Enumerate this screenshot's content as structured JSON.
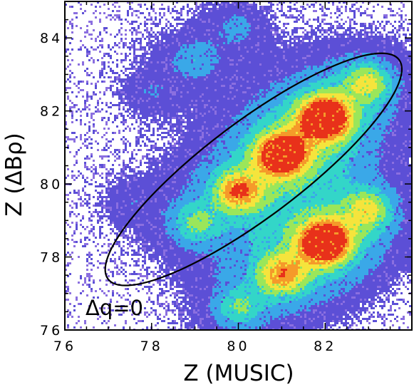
{
  "chart_data": {
    "type": "heatmap",
    "xlabel": "Z (MUSIC)",
    "ylabel": "Z (ΔBρ)",
    "xlim": [
      76,
      84
    ],
    "ylim": [
      76,
      85
    ],
    "x_ticks": [
      76,
      78,
      80,
      82
    ],
    "y_ticks": [
      76,
      78,
      80,
      82,
      84
    ],
    "x_tick_labels": [
      "76",
      "78",
      "80",
      "82"
    ],
    "y_tick_labels": [
      "76",
      "78",
      "80",
      "82",
      "84"
    ],
    "colormap": [
      "#ffffff",
      "#8b6fe0",
      "#5c4fd6",
      "#3aa8e8",
      "#33d6c8",
      "#9be65a",
      "#f5e43c",
      "#f59a2a",
      "#e8311a"
    ],
    "clusters": [
      {
        "x": 80,
        "y": 79.8,
        "intensity": 0.55
      },
      {
        "x": 81,
        "y": 80.8,
        "intensity": 0.85
      },
      {
        "x": 82,
        "y": 81.8,
        "intensity": 0.95
      },
      {
        "x": 83,
        "y": 82.8,
        "intensity": 0.4
      },
      {
        "x": 79,
        "y": 78.9,
        "intensity": 0.3
      },
      {
        "x": 82,
        "y": 78.4,
        "intensity": 0.95
      },
      {
        "x": 81,
        "y": 77.5,
        "intensity": 0.5
      },
      {
        "x": 83,
        "y": 79.3,
        "intensity": 0.4
      },
      {
        "x": 80,
        "y": 76.6,
        "intensity": 0.3
      },
      {
        "x": 79,
        "y": 83.4,
        "intensity": 0.2
      },
      {
        "x": 80,
        "y": 84.3,
        "intensity": 0.15
      },
      {
        "x": 78,
        "y": 82.5,
        "intensity": 0.12
      },
      {
        "x": 77.5,
        "y": 79.5,
        "intensity": 0.1
      }
    ],
    "annotation": {
      "text": "Δq=0",
      "ellipse": {
        "cx": 80.35,
        "cy": 80.4,
        "rx": 4.2,
        "ry": 1.1,
        "angle_deg": 37
      }
    }
  }
}
